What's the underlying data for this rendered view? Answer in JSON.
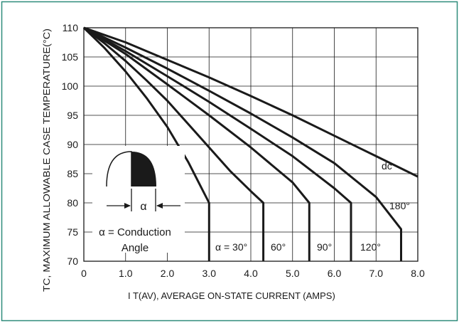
{
  "colors": {
    "border": "#2e8b7a",
    "ink": "#1a1a1a",
    "grid": "#1a1a1a"
  },
  "chart_data": {
    "type": "line",
    "title": "",
    "xlabel": "I T(AV), AVERAGE ON-STATE CURRENT (AMPS)",
    "ylabel": "TC, MAXIMUM ALLOWABLE CASE TEMPERATURE(°C)",
    "xlim": [
      0,
      8
    ],
    "ylim": [
      70,
      110
    ],
    "grid": true,
    "x_ticks": [
      "0",
      "1.0",
      "2.0",
      "3.0",
      "4.0",
      "5.0",
      "6.0",
      "7.0",
      "8.0"
    ],
    "y_ticks": [
      "70",
      "75",
      "80",
      "85",
      "90",
      "95",
      "100",
      "105",
      "110"
    ],
    "series": [
      {
        "name": "α = 30°",
        "label_value": "α = 30°",
        "x": [
          0,
          0.5,
          1.0,
          1.5,
          2.0,
          2.5,
          3.0,
          3.0
        ],
        "y": [
          110,
          106.5,
          102.5,
          98,
          93,
          87,
          80,
          70
        ]
      },
      {
        "name": "60°",
        "label_value": "60°",
        "x": [
          0,
          0.5,
          1.0,
          1.5,
          2.0,
          2.5,
          3.0,
          3.5,
          4.0,
          4.3,
          4.3
        ],
        "y": [
          110,
          107.3,
          104.3,
          101,
          97.5,
          93.5,
          89.5,
          85.5,
          82,
          80,
          70
        ]
      },
      {
        "name": "90°",
        "label_value": "90°",
        "x": [
          0,
          1.0,
          2.0,
          3.0,
          4.0,
          5.0,
          5.4,
          5.4
        ],
        "y": [
          110,
          105.5,
          100.3,
          95,
          89.5,
          83.5,
          80,
          70
        ]
      },
      {
        "name": "120°",
        "label_value": "120°",
        "x": [
          0,
          1.0,
          2.0,
          3.0,
          4.0,
          5.0,
          6.0,
          6.4,
          6.4
        ],
        "y": [
          110,
          106,
          101.7,
          97.3,
          92.7,
          88,
          82.5,
          80,
          70
        ]
      },
      {
        "name": "180°",
        "label_value": "180°",
        "x": [
          0,
          1.0,
          2.0,
          3.0,
          4.0,
          5.0,
          6.0,
          7.0,
          7.6,
          7.6
        ],
        "y": [
          110,
          106.6,
          103,
          99.2,
          95.3,
          91.2,
          86.8,
          81,
          75.5,
          70
        ]
      },
      {
        "name": "dc",
        "label_value": "dc",
        "x": [
          0,
          1.0,
          2.0,
          3.0,
          4.0,
          5.0,
          6.0,
          7.0,
          8.0
        ],
        "y": [
          110,
          107.5,
          104.5,
          101.5,
          98.3,
          95,
          91.5,
          88,
          84.5
        ]
      }
    ],
    "legend": {
      "alpha_symbol": "α",
      "conduction_line1": "α = Conduction",
      "conduction_line2": "Angle"
    }
  }
}
